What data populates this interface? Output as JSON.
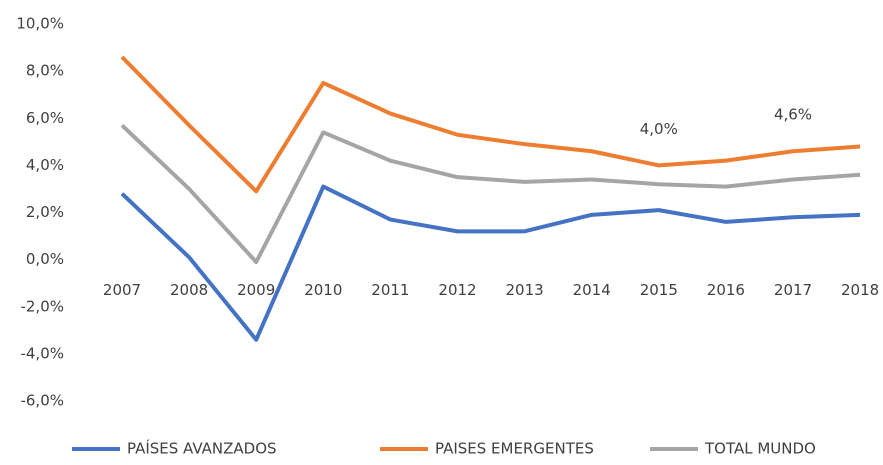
{
  "chart_data": {
    "type": "line",
    "categories": [
      "2007",
      "2008",
      "2009",
      "2010",
      "2011",
      "2012",
      "2013",
      "2014",
      "2015",
      "2016",
      "2017",
      "2018"
    ],
    "series": [
      {
        "name": "PAÍSES AVANZADOS",
        "color": "#4472c4",
        "values": [
          2.8,
          0.1,
          -3.4,
          3.1,
          1.7,
          1.2,
          1.2,
          1.9,
          2.1,
          1.6,
          1.8,
          1.9
        ]
      },
      {
        "name": "PAISES EMERGENTES",
        "color": "#ed7d31",
        "values": [
          8.6,
          5.7,
          2.9,
          7.5,
          6.2,
          5.3,
          4.9,
          4.6,
          4.0,
          4.2,
          4.6,
          4.8
        ],
        "value_labels": [
          null,
          null,
          null,
          null,
          null,
          null,
          null,
          null,
          "4,0%",
          null,
          "4,6%",
          null
        ]
      },
      {
        "name": "TOTAL MUNDO",
        "color": "#a5a5a5",
        "values": [
          5.7,
          3.0,
          -0.1,
          5.4,
          4.2,
          3.5,
          3.3,
          3.4,
          3.2,
          3.1,
          3.4,
          3.6
        ]
      }
    ],
    "ylim": [
      -6,
      10
    ],
    "yticks": [
      {
        "value": -6,
        "label": "-6,0%"
      },
      {
        "value": -4,
        "label": "-4,0%"
      },
      {
        "value": -2,
        "label": "-2,0%"
      },
      {
        "value": 0,
        "label": "0,0%"
      },
      {
        "value": 2,
        "label": "2,0%"
      },
      {
        "value": 4,
        "label": "4,0%"
      },
      {
        "value": 6,
        "label": "6,0%"
      },
      {
        "value": 8,
        "label": "8,0%"
      },
      {
        "value": 10,
        "label": "10,0%"
      }
    ],
    "grid": false,
    "legend": "bottom"
  }
}
